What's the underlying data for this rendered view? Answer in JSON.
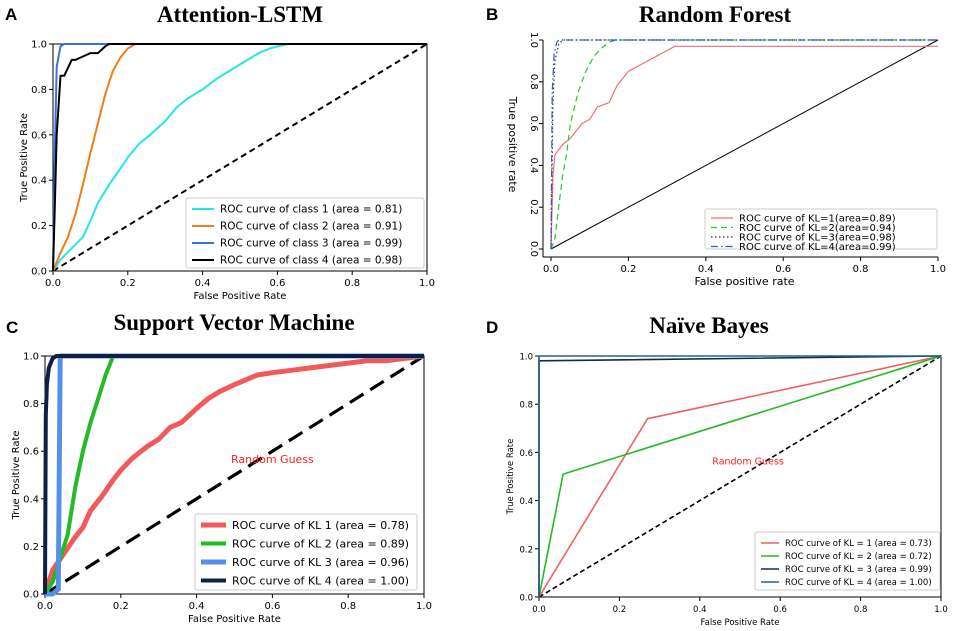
{
  "figure": {
    "background": "#ffffff"
  },
  "chart_data": [
    {
      "id": "A",
      "letter": "A",
      "type": "line",
      "title": "Attention-LSTM",
      "xlabel": "False Positive Rate",
      "ylabel": "True Positive Rate",
      "xlim": [
        0,
        1
      ],
      "ylim": [
        0,
        1
      ],
      "xticks": [
        "0.0",
        "0.2",
        "0.4",
        "0.6",
        "0.8",
        "1.0"
      ],
      "yticks": [
        "0.0",
        "0.2",
        "0.4",
        "0.6",
        "0.8",
        "1.0"
      ],
      "legend_position": "bottom-right",
      "diagonal": {
        "color": "#000000",
        "dash": "dashed"
      },
      "series": [
        {
          "name": "ROC curve of class 1 (area = 0.81)",
          "color": "#22e5f0",
          "x": [
            0,
            0.02,
            0.05,
            0.08,
            0.1,
            0.12,
            0.15,
            0.18,
            0.2,
            0.23,
            0.26,
            0.3,
            0.33,
            0.36,
            0.4,
            0.44,
            0.48,
            0.52,
            0.55,
            0.58,
            0.6,
            0.63,
            1.0
          ],
          "y": [
            0,
            0.05,
            0.1,
            0.15,
            0.22,
            0.3,
            0.38,
            0.45,
            0.5,
            0.56,
            0.6,
            0.66,
            0.72,
            0.76,
            0.8,
            0.85,
            0.89,
            0.93,
            0.96,
            0.98,
            0.99,
            1.0,
            1.0
          ]
        },
        {
          "name": "ROC curve of class 2 (area = 0.91)",
          "color": "#f47c16",
          "x": [
            0,
            0.02,
            0.04,
            0.06,
            0.08,
            0.1,
            0.12,
            0.14,
            0.16,
            0.18,
            0.2,
            0.22,
            1.0
          ],
          "y": [
            0,
            0.08,
            0.15,
            0.25,
            0.38,
            0.52,
            0.65,
            0.78,
            0.88,
            0.94,
            0.98,
            1.0,
            1.0
          ]
        },
        {
          "name": "ROC curve of class 3 (area = 0.99)",
          "color": "#3b6fe0",
          "x": [
            0,
            0.005,
            0.01,
            0.02,
            0.03,
            0.05,
            1.0
          ],
          "y": [
            0,
            0.55,
            0.9,
            0.99,
            1.0,
            1.0,
            1.0
          ]
        },
        {
          "name": "ROC curve of class 4 (area = 0.98)",
          "color": "#000000",
          "x": [
            0,
            0.005,
            0.01,
            0.02,
            0.03,
            0.05,
            0.06,
            0.1,
            0.12,
            0.14,
            0.15,
            1.0
          ],
          "y": [
            0,
            0.3,
            0.6,
            0.86,
            0.86,
            0.93,
            0.93,
            0.96,
            0.96,
            0.99,
            1.0,
            1.0
          ]
        }
      ]
    },
    {
      "id": "B",
      "letter": "B",
      "type": "line",
      "title": "Random Forest",
      "xlabel": "False positive rate",
      "ylabel": "True positive rate",
      "xlim": [
        0,
        1
      ],
      "ylim": [
        0,
        1
      ],
      "xticks": [
        "0.0",
        "0.2",
        "0.4",
        "0.6",
        "0.8",
        "1.0"
      ],
      "yticks": [
        "0.0",
        "0.2",
        "0.4",
        "0.6",
        "0.8",
        "1.0"
      ],
      "legend_position": "bottom-right",
      "diagonal": {
        "color": "#000000",
        "dash": "solid"
      },
      "series": [
        {
          "name": "ROC curve of KL=1(area=0.89)",
          "color": "#f07070",
          "dash": "solid",
          "x": [
            0,
            0.005,
            0.01,
            0.03,
            0.05,
            0.08,
            0.1,
            0.12,
            0.15,
            0.17,
            0.2,
            0.25,
            0.3,
            0.32,
            1.0
          ],
          "y": [
            0,
            0.35,
            0.45,
            0.5,
            0.53,
            0.6,
            0.62,
            0.68,
            0.7,
            0.78,
            0.85,
            0.9,
            0.95,
            0.97,
            0.97
          ]
        },
        {
          "name": "ROC curve of KL=2(area=0.94)",
          "color": "#22cc22",
          "dash": "dashed",
          "x": [
            0,
            0.01,
            0.02,
            0.03,
            0.04,
            0.05,
            0.07,
            0.09,
            0.11,
            0.13,
            0.15,
            0.17,
            1.0
          ],
          "y": [
            0,
            0.05,
            0.2,
            0.35,
            0.45,
            0.6,
            0.75,
            0.85,
            0.92,
            0.96,
            0.99,
            1.0,
            1.0
          ]
        },
        {
          "name": "ROC curve of KL=3(area=0.98)",
          "color": "#333333",
          "dash": "dotted",
          "x": [
            0,
            0.005,
            0.01,
            0.02,
            0.03,
            1.0
          ],
          "y": [
            0,
            0.7,
            0.9,
            0.98,
            1.0,
            1.0
          ]
        },
        {
          "name": "ROC curve of KL=4(area=0.99)",
          "color": "#3355dd",
          "dash": "dashdot",
          "x": [
            0,
            0.003,
            0.008,
            0.015,
            0.02,
            1.0
          ],
          "y": [
            0,
            0.75,
            0.93,
            0.99,
            1.0,
            1.0
          ]
        }
      ]
    },
    {
      "id": "C",
      "letter": "C",
      "type": "line",
      "title": "Support Vector Machine",
      "xlabel": "False Positive Rate",
      "ylabel": "True Positive Rate",
      "xlim": [
        0,
        1
      ],
      "ylim": [
        0,
        1
      ],
      "xticks": [
        "0.0",
        "0.2",
        "0.4",
        "0.6",
        "0.8",
        "1.0"
      ],
      "yticks": [
        "0.0",
        "0.2",
        "0.4",
        "0.6",
        "0.8",
        "1.0"
      ],
      "legend_position": "bottom-right",
      "annotation": {
        "text": "Random Guess",
        "x": 0.6,
        "y": 0.55,
        "color": "#ff2020"
      },
      "diagonal": {
        "color": "#000000",
        "dash": "dashed"
      },
      "series": [
        {
          "name": "ROC curve of KL 1 (area = 0.78)",
          "color": "#f05a5a",
          "x": [
            0,
            0.02,
            0.05,
            0.08,
            0.1,
            0.12,
            0.15,
            0.18,
            0.2,
            0.23,
            0.27,
            0.3,
            0.33,
            0.36,
            0.4,
            0.43,
            0.46,
            0.5,
            0.53,
            0.56,
            0.6,
            0.65,
            0.7,
            0.75,
            0.8,
            0.85,
            0.9,
            0.95,
            1.0
          ],
          "y": [
            0,
            0.1,
            0.17,
            0.24,
            0.28,
            0.35,
            0.41,
            0.48,
            0.52,
            0.57,
            0.62,
            0.65,
            0.7,
            0.72,
            0.78,
            0.82,
            0.85,
            0.88,
            0.9,
            0.92,
            0.93,
            0.94,
            0.95,
            0.96,
            0.97,
            0.98,
            0.98,
            0.99,
            1.0
          ]
        },
        {
          "name": "ROC curve of KL 2 (area = 0.89)",
          "color": "#22bb22",
          "x": [
            0,
            0.02,
            0.04,
            0.06,
            0.08,
            0.1,
            0.12,
            0.14,
            0.16,
            0.18,
            1.0
          ],
          "y": [
            0,
            0.05,
            0.15,
            0.25,
            0.45,
            0.6,
            0.72,
            0.82,
            0.92,
            1.0,
            1.0
          ]
        },
        {
          "name": "ROC curve of KL 3 (area = 0.96)",
          "color": "#5590e8",
          "x": [
            0,
            0.01,
            0.02,
            0.035,
            0.04,
            0.05,
            1.0
          ],
          "y": [
            0,
            0.0,
            0.0,
            0.02,
            1.0,
            1.0,
            1.0
          ]
        },
        {
          "name": "ROC curve of KL 4 (area = 1.00)",
          "color": "#0d1f44",
          "x": [
            0,
            0.002,
            0.005,
            0.01,
            0.02,
            0.03,
            1.0
          ],
          "y": [
            0,
            0.75,
            0.88,
            0.95,
            0.99,
            1.0,
            1.0
          ]
        }
      ]
    },
    {
      "id": "D",
      "letter": "D",
      "type": "line",
      "title": "Naïve Bayes",
      "xlabel": "False Positive Rate",
      "ylabel": "True Positive Rate",
      "xlim": [
        0,
        1
      ],
      "ylim": [
        0,
        1
      ],
      "xticks": [
        "0.0",
        "0.2",
        "0.4",
        "0.6",
        "0.8",
        "1.0"
      ],
      "yticks": [
        "0.0",
        "0.2",
        "0.4",
        "0.6",
        "0.8",
        "1.0"
      ],
      "legend_position": "bottom-right",
      "annotation": {
        "text": "Random Guess",
        "x": 0.52,
        "y": 0.55,
        "color": "#ff2020"
      },
      "diagonal": {
        "color": "#000000",
        "dash": "dashed"
      },
      "series": [
        {
          "name": "ROC curve of KL = 1 (area = 0.73)",
          "color": "#f06060",
          "x": [
            0,
            0.27,
            1.0
          ],
          "y": [
            0,
            0.74,
            1.0
          ]
        },
        {
          "name": "ROC curve of KL = 2 (area = 0.72)",
          "color": "#22bb22",
          "x": [
            0,
            0.06,
            1.0
          ],
          "y": [
            0,
            0.51,
            1.0
          ]
        },
        {
          "name": "ROC curve of KL = 3 (area = 0.99)",
          "color": "#102a50",
          "x": [
            0,
            0.0,
            1.0
          ],
          "y": [
            0,
            0.98,
            1.0
          ]
        },
        {
          "name": "ROC curve of KL = 4 (area = 1.00)",
          "color": "#2d5e8a",
          "x": [
            0,
            0.0,
            1.0
          ],
          "y": [
            0,
            1.0,
            1.0
          ]
        }
      ]
    }
  ]
}
